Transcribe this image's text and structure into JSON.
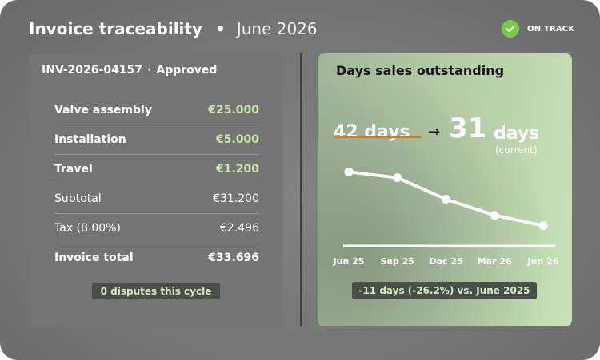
{
  "header": {
    "title": "Invoice traceability",
    "separator": "•",
    "period": "June 2026"
  },
  "status": {
    "label": "ON TRACK",
    "icon": "check-circle-icon",
    "color": "#7cc84c"
  },
  "invoice": {
    "id": "INV-2026-04157",
    "separator": "·",
    "state": "Approved",
    "rows": [
      {
        "name": "Valve assembly",
        "value": "€25.000"
      },
      {
        "name": "Installation",
        "value": "€5.000"
      },
      {
        "name": "Travel",
        "value": "€1.200"
      },
      {
        "name": "Subtotal",
        "value": "€31.200"
      },
      {
        "name": "Tax (8.00%)",
        "value": "€2.496"
      },
      {
        "name": "Invoice total",
        "value": "€33.696"
      }
    ],
    "disputes": "0 disputes this cycle"
  },
  "dso": {
    "title": "Days sales outstanding",
    "previous": "42 days",
    "arrow": "→",
    "current_value": "31",
    "current_unit": "days",
    "current_label": "(current)",
    "change": "-11 days (-26.2%) vs. June 2025"
  },
  "chart_data": {
    "type": "line",
    "title": "Days sales outstanding",
    "x": [
      "Jun 25",
      "Sep 25",
      "Dec 25",
      "Mar 26",
      "Jun 26"
    ],
    "series": [
      {
        "values": [
          42,
          40.8,
          36.4,
          33.1,
          31
        ]
      }
    ],
    "ylim": [
      27,
      45
    ],
    "grid": false,
    "line_color": "#ffffff"
  }
}
